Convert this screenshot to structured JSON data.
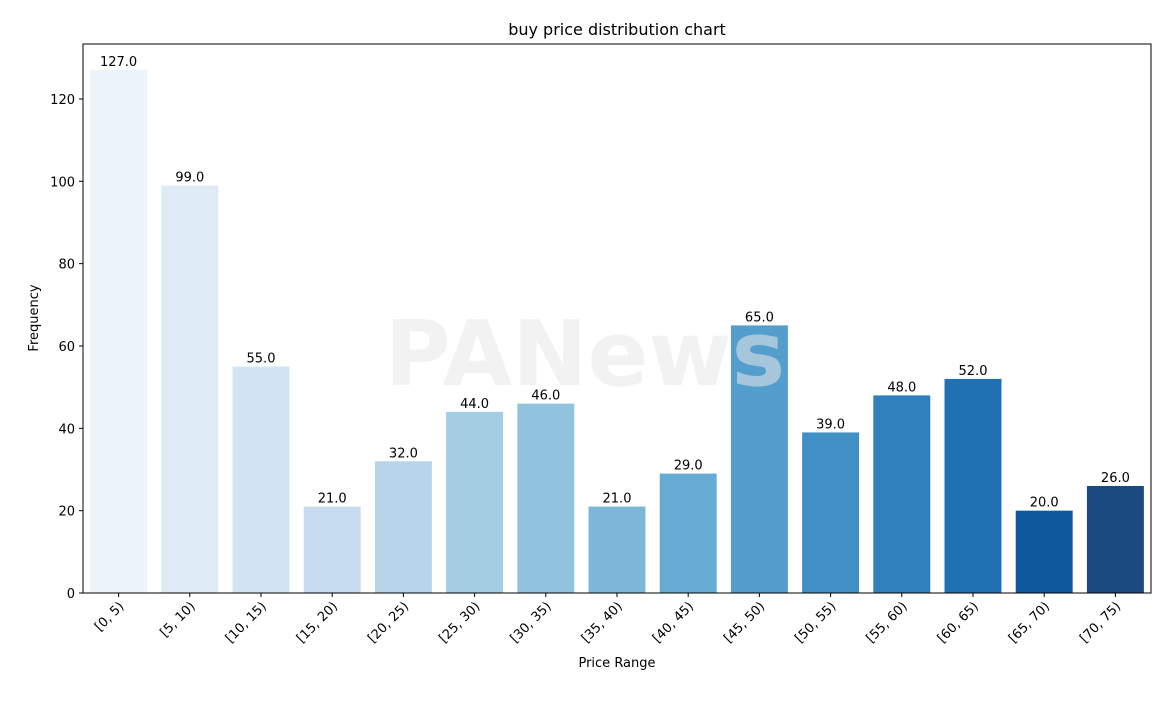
{
  "chart_data": {
    "type": "bar",
    "title": "buy price distribution chart",
    "x_label": "Price Range",
    "y_label": "Frequency",
    "watermark": "PANews",
    "categories": [
      "[0, 5)",
      "[5, 10)",
      "[10, 15)",
      "[15, 20)",
      "[20, 25)",
      "[25, 30)",
      "[30, 35)",
      "[35, 40)",
      "[40, 45)",
      "[45, 50)",
      "[50, 55)",
      "[55, 60)",
      "[60, 65)",
      "[65, 70)",
      "[70, 75)"
    ],
    "values": [
      127,
      99,
      55,
      21,
      32,
      44,
      46,
      21,
      29,
      65,
      39,
      48,
      52,
      20,
      26
    ],
    "value_labels": [
      "127.0",
      "99.0",
      "55.0",
      "21.0",
      "32.0",
      "44.0",
      "46.0",
      "21.0",
      "29.0",
      "65.0",
      "39.0",
      "48.0",
      "52.0",
      "20.0",
      "26.0"
    ],
    "colors": [
      "#ebf3fb",
      "#deebf7",
      "#d3e4f3",
      "#c8dcf0",
      "#b7d4ea",
      "#a4cce3",
      "#91c3de",
      "#7cb7da",
      "#66abd4",
      "#539ecd",
      "#4090c5",
      "#3080bd",
      "#2070b4",
      "#11599f",
      "#1a4a80"
    ],
    "ylim": [
      0,
      133.35
    ],
    "yticks": [
      0,
      20,
      40,
      60,
      80,
      100,
      120
    ],
    "grid": false
  }
}
